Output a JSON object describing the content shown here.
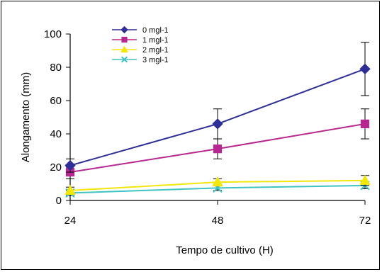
{
  "chart_data": {
    "type": "line",
    "xlabel": "Tempo de cultivo (H)",
    "ylabel": "Alongamento (mm)",
    "x": [
      24,
      48,
      72
    ],
    "ylim": [
      0,
      100
    ],
    "yticks": [
      0,
      20,
      40,
      60,
      80,
      100
    ],
    "xticks": [
      "24",
      "48",
      "72"
    ],
    "legend_position": "top-left",
    "series": [
      {
        "name": "0 mgl-1",
        "color": "#2e2e96",
        "marker": "diamond",
        "values": [
          21,
          46,
          79
        ],
        "err": [
          4,
          9,
          16
        ]
      },
      {
        "name": "1 mgl-1",
        "color": "#b8278f",
        "marker": "square",
        "values": [
          17,
          31,
          46
        ],
        "err": [
          4,
          6,
          9
        ]
      },
      {
        "name": "2 mgl-1",
        "color": "#f2e60a",
        "marker": "triangle",
        "values": [
          6,
          11,
          12
        ],
        "err": [
          2,
          2,
          3
        ]
      },
      {
        "name": "3 mgl-1",
        "color": "#3fc3c3",
        "marker": "x",
        "values": [
          4.5,
          7.5,
          9
        ],
        "err": [
          1.5,
          1.5,
          2
        ]
      }
    ]
  }
}
